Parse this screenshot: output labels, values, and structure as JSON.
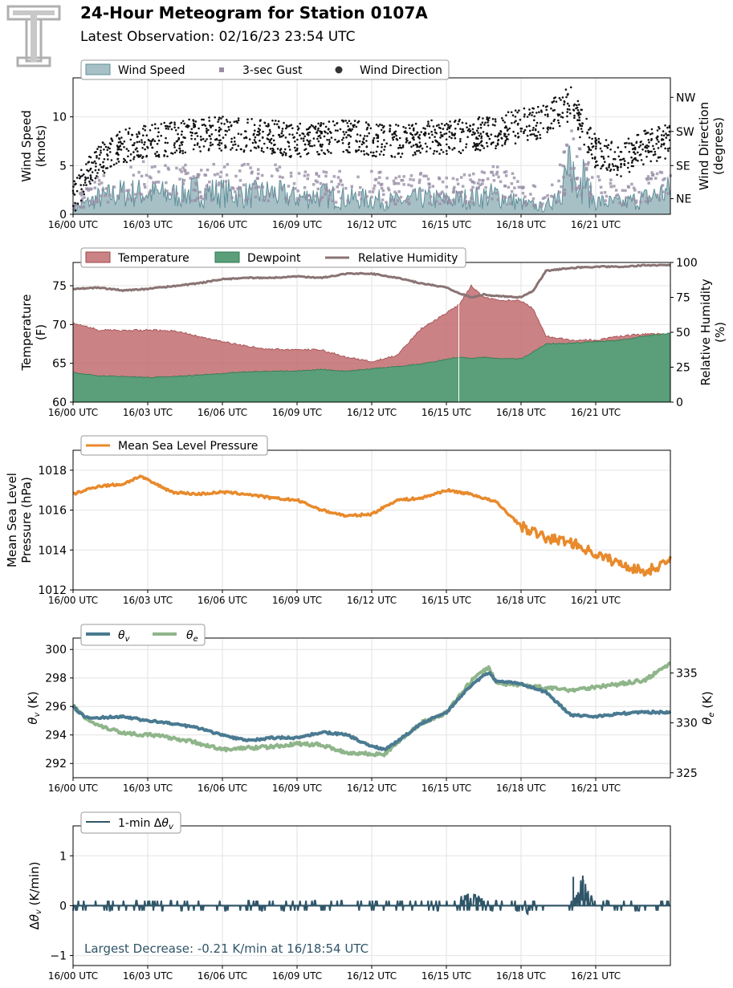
{
  "header": {
    "title": "24-Hour Meteogram for Station 0107A",
    "subtitle": "Latest Observation: 02/16/23 23:54 UTC"
  },
  "x_ticks": [
    "16/00 UTC",
    "16/03 UTC",
    "16/06 UTC",
    "16/09 UTC",
    "16/12 UTC",
    "16/15 UTC",
    "16/18 UTC",
    "16/21 UTC"
  ],
  "colors": {
    "wind_speed": "#5f8f99",
    "wind_speed_fill": "#a7c0c6",
    "gust": "#9a8ea6",
    "direction": "#111111",
    "temperature": "#c16c6f",
    "dewpoint": "#2e8b57",
    "rh": "#8a7373",
    "pressure": "#e88a2c",
    "theta_v": "#4a7a91",
    "theta_e": "#8fb58a",
    "dtheta": "#2f5568",
    "annotation": "#2f5568"
  },
  "chart_data": [
    {
      "type": "area",
      "panel": "wind",
      "ylabel": "Wind Speed\n(knots)",
      "ylabel2": "Wind Direction\n(degrees)",
      "ylim": [
        0,
        14
      ],
      "yticks": [
        "0",
        "5",
        "10"
      ],
      "y2ticks": [
        "NE",
        "SE",
        "SW",
        "NW"
      ],
      "legend": [
        "Wind Speed",
        "3-sec Gust",
        "Wind Direction"
      ],
      "grid": true,
      "x": [
        0,
        1,
        2,
        3,
        4,
        5,
        6,
        7,
        8,
        9,
        10,
        11,
        12,
        13,
        14,
        15,
        16,
        17,
        18,
        19,
        20,
        21,
        22,
        23,
        24
      ],
      "series": [
        {
          "name": "Wind Speed",
          "values": [
            0.5,
            1.5,
            2.0,
            2.0,
            1.8,
            2.2,
            2.0,
            1.8,
            2.0,
            1.5,
            1.8,
            1.5,
            1.4,
            1.2,
            1.5,
            1.3,
            1.5,
            1.8,
            1.0,
            0.6,
            4.0,
            1.2,
            1.0,
            1.5,
            2.2
          ]
        },
        {
          "name": "3-sec Gust",
          "values": [
            1.0,
            2.5,
            3.2,
            3.5,
            3.0,
            3.5,
            3.4,
            3.2,
            3.2,
            2.8,
            3.2,
            2.6,
            2.8,
            2.5,
            2.7,
            2.5,
            2.6,
            3.2,
            2.2,
            1.5,
            5.5,
            2.5,
            2.0,
            2.5,
            3.5
          ]
        },
        {
          "name": "Wind Direction",
          "values": [
            45,
            150,
            185,
            200,
            205,
            215,
            220,
            215,
            210,
            200,
            210,
            215,
            205,
            200,
            210,
            210,
            215,
            225,
            240,
            255,
            300,
            170,
            150,
            185,
            200
          ]
        }
      ]
    },
    {
      "type": "area",
      "panel": "temperature",
      "ylabel": "Temperature\n(F)",
      "ylabel2": "Relative Humidity\n(%)",
      "ylim": [
        60,
        78
      ],
      "y2lim": [
        0,
        100
      ],
      "yticks": [
        "60",
        "65",
        "70",
        "75"
      ],
      "y2ticks": [
        "0",
        "25",
        "50",
        "75",
        "100"
      ],
      "legend": [
        "Temperature",
        "Dewpoint",
        "Relative Humidity"
      ],
      "grid": true,
      "x": [
        0,
        1,
        2,
        3,
        4,
        5,
        6,
        7,
        8,
        9,
        10,
        11,
        12,
        13,
        14,
        15,
        15.5,
        16,
        16.5,
        17,
        18,
        18.5,
        19,
        20,
        21,
        22,
        23,
        24
      ],
      "series": [
        {
          "name": "Temperature",
          "values": [
            70.2,
            69.3,
            69.2,
            69.3,
            69.2,
            68.5,
            67.8,
            67.2,
            66.8,
            66.8,
            66.7,
            65.8,
            65.2,
            66.0,
            69.5,
            71.5,
            72.5,
            75.0,
            73.5,
            73.2,
            73.0,
            72.0,
            68.5,
            68.0,
            68.0,
            68.5,
            68.8,
            68.8
          ]
        },
        {
          "name": "Dewpoint",
          "values": [
            63.8,
            63.4,
            63.3,
            63.2,
            63.3,
            63.5,
            63.7,
            63.9,
            64.0,
            64.0,
            64.2,
            64.0,
            64.3,
            64.6,
            64.9,
            65.5,
            65.8,
            65.6,
            65.8,
            65.6,
            65.6,
            66.5,
            67.5,
            67.6,
            67.8,
            68.0,
            68.5,
            68.9
          ]
        },
        {
          "name": "Relative Humidity",
          "values": [
            81,
            82,
            80,
            81,
            83,
            85,
            88,
            89,
            89,
            90,
            89,
            92,
            92,
            89,
            85,
            82,
            78,
            75,
            77,
            76,
            75,
            80,
            94,
            96,
            97,
            97,
            98,
            98
          ]
        }
      ]
    },
    {
      "type": "line",
      "panel": "pressure",
      "ylabel": "Mean Sea Level\nPressure (hPa)",
      "ylim": [
        1012,
        1019
      ],
      "yticks": [
        "1012",
        "1014",
        "1016",
        "1018"
      ],
      "legend": [
        "Mean Sea Level Pressure"
      ],
      "grid": true,
      "x": [
        0,
        1,
        2,
        2.7,
        3,
        4,
        5,
        6,
        7,
        8,
        9,
        10,
        11,
        12,
        13,
        14,
        15,
        16,
        17,
        18,
        19,
        20,
        21,
        22,
        23,
        24
      ],
      "series": [
        {
          "name": "Mean Sea Level Pressure",
          "values": [
            1016.8,
            1017.2,
            1017.3,
            1017.7,
            1017.5,
            1016.9,
            1016.8,
            1016.9,
            1016.8,
            1016.6,
            1016.5,
            1016.0,
            1015.7,
            1015.8,
            1016.5,
            1016.6,
            1017.0,
            1016.8,
            1016.4,
            1015.2,
            1014.6,
            1014.4,
            1013.8,
            1013.3,
            1012.9,
            1013.5
          ]
        }
      ]
    },
    {
      "type": "line",
      "panel": "theta",
      "ylabel": "θv (K)",
      "ylabel2": "θe (K)",
      "ylim": [
        291,
        300.8
      ],
      "y2lim": [
        324.5,
        338.5
      ],
      "yticks": [
        "292",
        "294",
        "296",
        "298",
        "300"
      ],
      "y2ticks": [
        "325",
        "330",
        "335"
      ],
      "legend": [
        "θv",
        "θe"
      ],
      "grid": true,
      "x": [
        0,
        0.5,
        1,
        2,
        3,
        4,
        5,
        6,
        7,
        8,
        9,
        10,
        11,
        12,
        12.5,
        13,
        14,
        15,
        16,
        16.7,
        17,
        18,
        19,
        20,
        21,
        22,
        23,
        24
      ],
      "series": [
        {
          "name": "θv",
          "values": [
            296.0,
            295.2,
            295.2,
            295.3,
            295.0,
            294.8,
            294.5,
            294.0,
            293.6,
            293.8,
            293.8,
            294.2,
            294.0,
            293.2,
            293.0,
            293.5,
            294.8,
            295.6,
            297.5,
            298.4,
            297.8,
            297.6,
            297.0,
            295.4,
            295.3,
            295.5,
            295.6,
            295.6
          ]
        },
        {
          "name": "θe",
          "values": [
            331.7,
            330.5,
            329.8,
            329.0,
            328.8,
            328.5,
            328.0,
            327.3,
            327.5,
            327.6,
            327.9,
            327.8,
            327.0,
            326.9,
            326.8,
            328.0,
            330.0,
            331.0,
            334.2,
            335.6,
            334.0,
            333.8,
            333.5,
            333.3,
            333.6,
            333.9,
            334.3,
            336.0
          ]
        }
      ]
    },
    {
      "type": "line",
      "panel": "dtheta",
      "ylabel": "Δθv (K/min)",
      "ylim": [
        -1.2,
        1.6
      ],
      "yticks": [
        "−1",
        "0",
        "1"
      ],
      "legend": [
        "1-min Δθv"
      ],
      "grid": true,
      "annotation": "Largest Decrease: -0.21 K/min at 16/18:54 UTC",
      "x": [
        0,
        1,
        2,
        3,
        4,
        5,
        6,
        7,
        8,
        9,
        10,
        11,
        12,
        13,
        14,
        15,
        16,
        17,
        18,
        19,
        20,
        20.5,
        21,
        22,
        23,
        24
      ],
      "series": [
        {
          "name": "1-min Δθv",
          "values": [
            0.0,
            0.05,
            -0.05,
            0.08,
            0.0,
            0.05,
            -0.05,
            0.05,
            0.0,
            0.05,
            0.0,
            0.03,
            0.0,
            0.0,
            0.05,
            0.08,
            0.25,
            0.05,
            -0.21,
            0.0,
            0.0,
            0.58,
            0.05,
            0.0,
            0.05,
            0.0
          ]
        }
      ]
    }
  ]
}
